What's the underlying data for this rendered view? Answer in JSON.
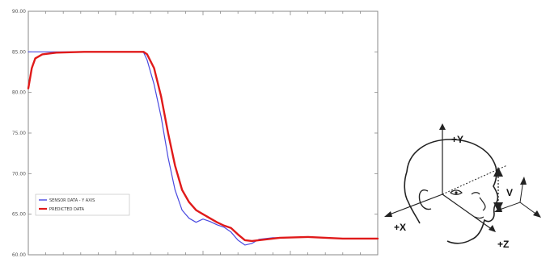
{
  "chart_data": {
    "type": "line",
    "title": "",
    "xlabel": "",
    "ylabel": "",
    "ylim": [
      60,
      90
    ],
    "xlim": [
      0,
      100
    ],
    "y_ticks": [
      60,
      65,
      70,
      75,
      80,
      85,
      90
    ],
    "y_tick_labels": [
      "60.00",
      "65.00",
      "70.00",
      "75.00",
      "80.00",
      "85.00",
      "90.00"
    ],
    "grid": false,
    "legend_position": "bottom-left",
    "series": [
      {
        "name": "SENSOR DATA - Y AXIS",
        "color": "#4a4ae0",
        "x": [
          0,
          8,
          16,
          24,
          30,
          32,
          33,
          34,
          36,
          38,
          40,
          42,
          44,
          46,
          48,
          50,
          52,
          54,
          56,
          58,
          60,
          62,
          64,
          66,
          68,
          70,
          72,
          80,
          90,
          100
        ],
        "y": [
          85,
          85,
          85,
          85,
          85,
          85,
          84.9,
          84,
          81,
          77,
          72,
          68,
          65.5,
          64.5,
          64,
          64.4,
          64.1,
          63.7,
          63.4,
          62.8,
          61.8,
          61.2,
          61.4,
          61.9,
          62,
          62.1,
          62.1,
          62.2,
          62.0,
          62.0
        ]
      },
      {
        "name": "PREDICTED DATA",
        "color": "#e01a1a",
        "x": [
          0,
          1,
          2,
          4,
          8,
          16,
          24,
          30,
          32,
          33,
          34,
          36,
          38,
          40,
          42,
          44,
          46,
          48,
          50,
          52,
          54,
          56,
          58,
          60,
          62,
          64,
          66,
          68,
          70,
          72,
          80,
          90,
          100
        ],
        "y": [
          80.5,
          83,
          84.2,
          84.7,
          84.9,
          85,
          85,
          85,
          85,
          85,
          84.7,
          83,
          79.5,
          75,
          71,
          68,
          66.5,
          65.5,
          65,
          64.5,
          64,
          63.6,
          63.3,
          62.5,
          61.8,
          61.7,
          61.8,
          61.9,
          62.0,
          62.1,
          62.2,
          62.0,
          62.0
        ]
      }
    ]
  },
  "figure_labels": {
    "plus_y": "+Y",
    "plus_x": "+X",
    "plus_z": "+Z",
    "v": "V"
  }
}
